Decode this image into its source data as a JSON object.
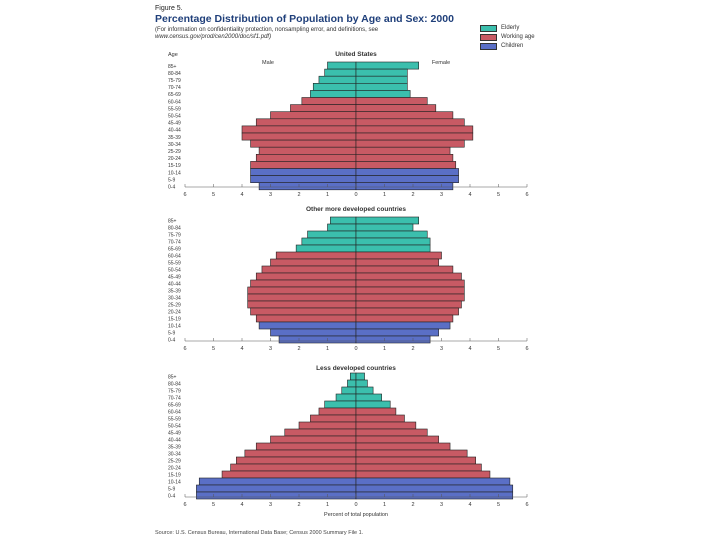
{
  "figure": {
    "label": "Figure 5.",
    "title": "Percentage Distribution of Population by Age and Sex: 2000",
    "subtitle": "(For information on confidentiality protection, nonsampling error, and definitions, see",
    "url": "www.census.gov/prod/cen2000/doc/sf1.pdf)",
    "source": "Source: U.S. Census Bureau, International Data Base; Census 2000 Summary File 1."
  },
  "legend": [
    {
      "name": "Elderly",
      "color": "#3bbfad"
    },
    {
      "name": "Working age",
      "color": "#c85a64"
    },
    {
      "name": "Children",
      "color": "#5a6fc6"
    }
  ],
  "chart_data": [
    {
      "type": "bar",
      "orientation": "horizontal-pyramid",
      "title": "United States",
      "age_axis_label": "Age",
      "male_label": "Male",
      "female_label": "Female",
      "xlabel": "",
      "xlim": [
        -6,
        6
      ],
      "xticks": [
        "6",
        "5",
        "4",
        "3",
        "2",
        "1",
        "0",
        "1",
        "2",
        "3",
        "4",
        "5",
        "6"
      ],
      "categories": [
        "85+",
        "80-84",
        "75-79",
        "70-74",
        "65-69",
        "60-64",
        "55-59",
        "50-54",
        "45-49",
        "40-44",
        "35-39",
        "30-34",
        "25-29",
        "20-24",
        "15-19",
        "10-14",
        "5-9",
        "0-4"
      ],
      "groups": [
        "Elderly",
        "Elderly",
        "Elderly",
        "Elderly",
        "Elderly",
        "Working age",
        "Working age",
        "Working age",
        "Working age",
        "Working age",
        "Working age",
        "Working age",
        "Working age",
        "Working age",
        "Working age",
        "Children",
        "Children",
        "Children"
      ],
      "series": [
        {
          "name": "Male",
          "values": [
            1.0,
            1.1,
            1.3,
            1.5,
            1.6,
            1.9,
            2.3,
            3.0,
            3.5,
            4.0,
            4.0,
            3.7,
            3.4,
            3.5,
            3.7,
            3.7,
            3.7,
            3.4
          ]
        },
        {
          "name": "Female",
          "values": [
            2.2,
            1.8,
            1.8,
            1.8,
            1.9,
            2.5,
            2.8,
            3.4,
            3.8,
            4.1,
            4.1,
            3.8,
            3.3,
            3.4,
            3.5,
            3.6,
            3.6,
            3.4
          ]
        }
      ]
    },
    {
      "type": "bar",
      "orientation": "horizontal-pyramid",
      "title": "Other more developed countries",
      "xlabel": "",
      "xlim": [
        -6,
        6
      ],
      "xticks": [
        "6",
        "5",
        "4",
        "3",
        "2",
        "1",
        "0",
        "1",
        "2",
        "3",
        "4",
        "5",
        "6"
      ],
      "categories": [
        "85+",
        "80-84",
        "75-79",
        "70-74",
        "65-69",
        "60-64",
        "55-59",
        "50-54",
        "45-49",
        "40-44",
        "35-39",
        "30-34",
        "25-29",
        "20-24",
        "15-19",
        "10-14",
        "5-9",
        "0-4"
      ],
      "groups": [
        "Elderly",
        "Elderly",
        "Elderly",
        "Elderly",
        "Elderly",
        "Working age",
        "Working age",
        "Working age",
        "Working age",
        "Working age",
        "Working age",
        "Working age",
        "Working age",
        "Working age",
        "Working age",
        "Children",
        "Children",
        "Children"
      ],
      "series": [
        {
          "name": "Male",
          "values": [
            0.9,
            1.0,
            1.7,
            1.9,
            2.1,
            2.8,
            3.0,
            3.3,
            3.5,
            3.7,
            3.8,
            3.8,
            3.8,
            3.7,
            3.5,
            3.4,
            3.0,
            2.7
          ]
        },
        {
          "name": "Female",
          "values": [
            2.2,
            2.0,
            2.5,
            2.6,
            2.6,
            3.0,
            2.9,
            3.4,
            3.7,
            3.8,
            3.8,
            3.8,
            3.7,
            3.6,
            3.4,
            3.3,
            2.9,
            2.6
          ]
        }
      ]
    },
    {
      "type": "bar",
      "orientation": "horizontal-pyramid",
      "title": "Less developed countries",
      "xlabel": "Percent of total population",
      "xlim": [
        -6,
        6
      ],
      "xticks": [
        "6",
        "5",
        "4",
        "3",
        "2",
        "1",
        "0",
        "1",
        "2",
        "3",
        "4",
        "5",
        "6"
      ],
      "categories": [
        "85+",
        "80-84",
        "75-79",
        "70-74",
        "65-69",
        "60-64",
        "55-59",
        "50-54",
        "45-49",
        "40-44",
        "35-39",
        "30-34",
        "25-29",
        "20-24",
        "15-19",
        "10-14",
        "5-9",
        "0-4"
      ],
      "groups": [
        "Elderly",
        "Elderly",
        "Elderly",
        "Elderly",
        "Elderly",
        "Working age",
        "Working age",
        "Working age",
        "Working age",
        "Working age",
        "Working age",
        "Working age",
        "Working age",
        "Working age",
        "Working age",
        "Children",
        "Children",
        "Children"
      ],
      "series": [
        {
          "name": "Male",
          "values": [
            0.2,
            0.3,
            0.5,
            0.7,
            1.1,
            1.3,
            1.6,
            2.0,
            2.5,
            3.0,
            3.5,
            3.9,
            4.2,
            4.4,
            4.7,
            5.5,
            5.6,
            5.6
          ]
        },
        {
          "name": "Female",
          "values": [
            0.3,
            0.4,
            0.6,
            0.9,
            1.2,
            1.4,
            1.7,
            2.1,
            2.5,
            2.9,
            3.3,
            3.9,
            4.2,
            4.4,
            4.7,
            5.4,
            5.5,
            5.5
          ]
        }
      ]
    }
  ]
}
